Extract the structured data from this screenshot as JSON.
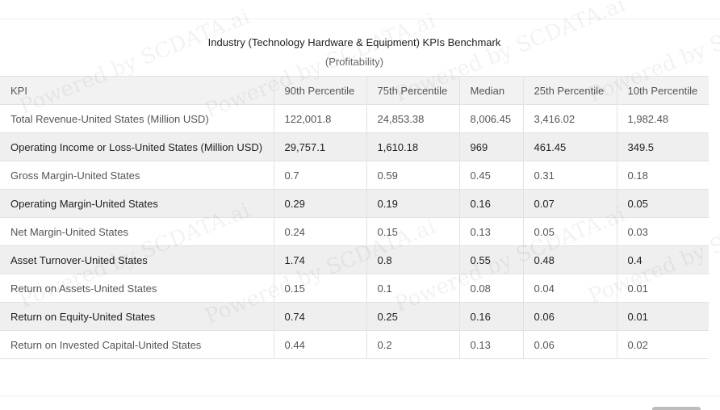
{
  "title": "Industry (Technology Hardware & Equipment) KPIs Benchmark",
  "subtitle": "(Profitability)",
  "table": {
    "headers": [
      "KPI",
      "90th Percentile",
      "75th Percentile",
      "Median",
      "25th Percentile",
      "10th Percentile"
    ],
    "rows": [
      [
        "Total Revenue-United States (Million USD)",
        "122,001.8",
        "24,853.38",
        "8,006.45",
        "3,416.02",
        "1,982.48"
      ],
      [
        "Operating Income or Loss-United States (Million USD)",
        "29,757.1",
        "1,610.18",
        "969",
        "461.45",
        "349.5"
      ],
      [
        "Gross Margin-United States",
        "0.7",
        "0.59",
        "0.45",
        "0.31",
        "0.18"
      ],
      [
        "Operating Margin-United States",
        "0.29",
        "0.19",
        "0.16",
        "0.07",
        "0.05"
      ],
      [
        "Net Margin-United States",
        "0.24",
        "0.15",
        "0.13",
        "0.05",
        "0.03"
      ],
      [
        "Asset Turnover-United States",
        "1.74",
        "0.8",
        "0.55",
        "0.48",
        "0.4"
      ],
      [
        "Return on Assets-United States",
        "0.15",
        "0.1",
        "0.08",
        "0.04",
        "0.01"
      ],
      [
        "Return on Equity-United States",
        "0.74",
        "0.25",
        "0.16",
        "0.06",
        "0.01"
      ],
      [
        "Return on Invested Capital-United States",
        "0.44",
        "0.2",
        "0.13",
        "0.06",
        "0.02"
      ]
    ]
  },
  "watermark": "Powered by SCDATA.ai"
}
